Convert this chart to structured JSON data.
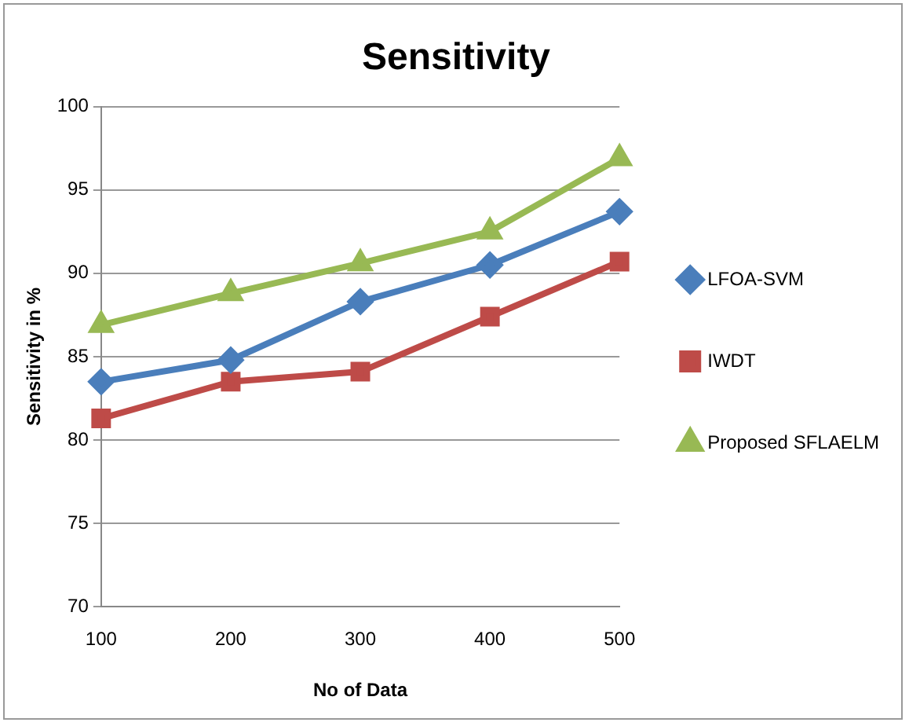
{
  "chart_data": {
    "type": "line",
    "title": "Sensitivity",
    "xlabel": "No of Data",
    "ylabel": "Sensitivity in %",
    "categories": [
      "100",
      "200",
      "300",
      "400",
      "500"
    ],
    "series": [
      {
        "name": "LFOA-SVM",
        "color": "#4a7ebb",
        "marker": "diamond",
        "values": [
          83.5,
          84.8,
          88.3,
          90.5,
          93.7
        ]
      },
      {
        "name": "IWDT",
        "color": "#be4b48",
        "marker": "square",
        "values": [
          81.3,
          83.5,
          84.1,
          87.4,
          90.7
        ]
      },
      {
        "name": "Proposed SFLAELM",
        "color": "#98b954",
        "marker": "triangle",
        "values": [
          86.9,
          88.8,
          90.6,
          92.5,
          96.9
        ]
      }
    ],
    "ylim": [
      70,
      100
    ],
    "yticks": [
      70,
      75,
      80,
      85,
      90,
      95,
      100
    ],
    "grid": "y",
    "legend": "right",
    "line_style": "solid"
  }
}
